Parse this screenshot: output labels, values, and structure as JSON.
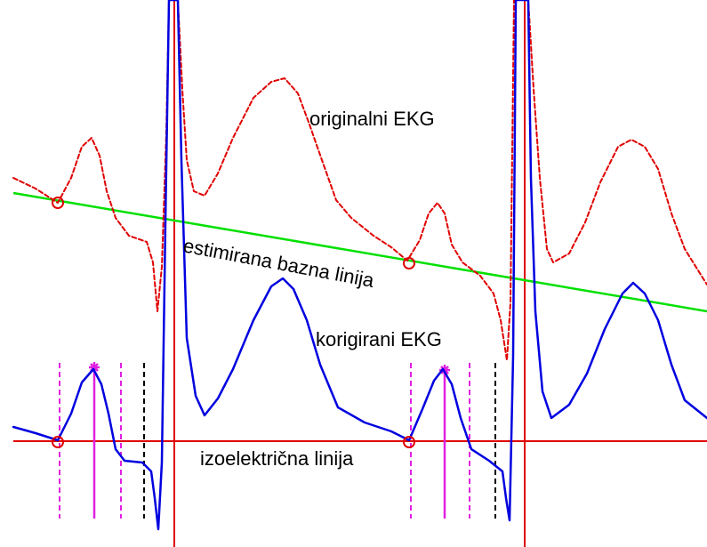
{
  "labels": {
    "original": "originalni EKG",
    "baseline": "estimirana bazna linija",
    "corrected": "korigirani EKG",
    "isoelectric": "izoelektrična linija"
  }
}
